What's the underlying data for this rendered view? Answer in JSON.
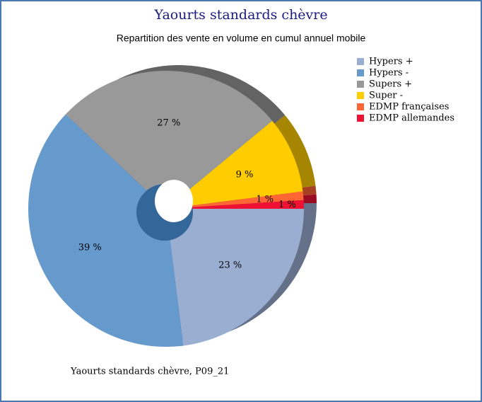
{
  "chart_data": {
    "type": "pie",
    "title": "Yaourts standards chèvre",
    "subtitle": "Repartition des vente en volume en cumul annuel mobile",
    "footer": "Yaourts standards chèvre, P09_21",
    "categories": [
      "Hypers +",
      "Hypers -",
      "Supers +",
      "Super -",
      "EDMP françaises",
      "EDMP allemandes"
    ],
    "values": [
      23,
      39,
      27,
      9,
      1,
      1
    ],
    "value_labels": [
      "23 %",
      "39 %",
      "27 %",
      "9 %",
      "1 %",
      "1 %"
    ],
    "colors": [
      "#9aaed2",
      "#6699cc",
      "#999999",
      "#ffcc00",
      "#ff6633",
      "#ee1133"
    ],
    "legend": "right"
  }
}
